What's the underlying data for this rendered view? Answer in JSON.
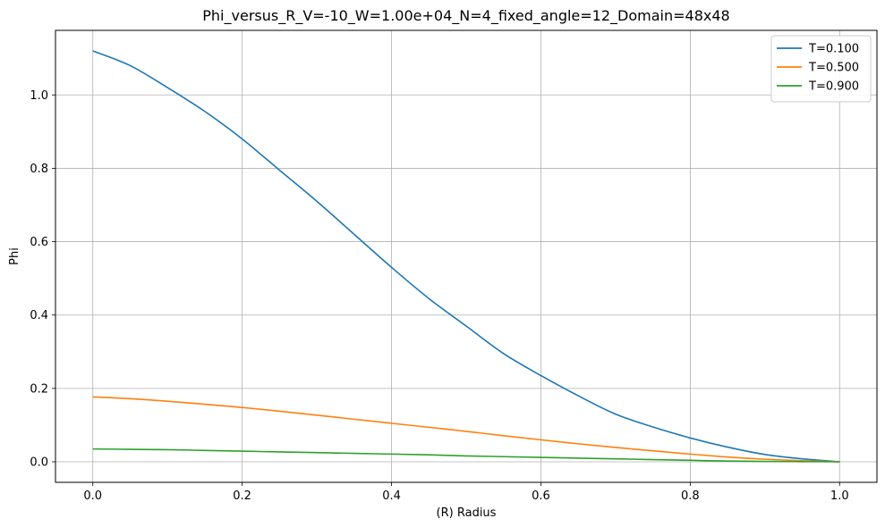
{
  "chart_data": {
    "type": "line",
    "title": "Phi_versus_R_V=-10_W=1.00e+04_N=4_fixed_angle=12_Domain=48x48",
    "xlabel": "(R) Radius",
    "ylabel": "Phi",
    "xlim": [
      -0.05,
      1.05
    ],
    "ylim": [
      -0.056,
      1.176
    ],
    "xticks": [
      0.0,
      0.2,
      0.4,
      0.6,
      0.8,
      1.0
    ],
    "xtick_labels": [
      "0.0",
      "0.2",
      "0.4",
      "0.6",
      "0.8",
      "1.0"
    ],
    "yticks": [
      0.0,
      0.2,
      0.4,
      0.6,
      0.8,
      1.0
    ],
    "ytick_labels": [
      "0.0",
      "0.2",
      "0.4",
      "0.6",
      "0.8",
      "1.0"
    ],
    "grid": true,
    "legend_position": "top-right",
    "series": [
      {
        "name": "T=0.100",
        "color": "#1f77b4",
        "x": [
          0.0,
          0.05,
          0.1,
          0.15,
          0.2,
          0.25,
          0.3,
          0.35,
          0.4,
          0.45,
          0.5,
          0.55,
          0.6,
          0.65,
          0.7,
          0.75,
          0.8,
          0.85,
          0.9,
          0.95,
          1.0
        ],
        "y": [
          1.12,
          1.08,
          1.02,
          0.955,
          0.88,
          0.795,
          0.71,
          0.62,
          0.53,
          0.445,
          0.37,
          0.295,
          0.235,
          0.18,
          0.13,
          0.095,
          0.065,
          0.04,
          0.02,
          0.008,
          0.0
        ]
      },
      {
        "name": "T=0.500",
        "color": "#ff7f0e",
        "x": [
          0.0,
          0.05,
          0.1,
          0.15,
          0.2,
          0.25,
          0.3,
          0.35,
          0.4,
          0.45,
          0.5,
          0.55,
          0.6,
          0.65,
          0.7,
          0.75,
          0.8,
          0.85,
          0.9,
          0.95,
          1.0
        ],
        "y": [
          0.177,
          0.172,
          0.165,
          0.157,
          0.148,
          0.138,
          0.127,
          0.116,
          0.105,
          0.094,
          0.083,
          0.071,
          0.06,
          0.049,
          0.039,
          0.03,
          0.021,
          0.013,
          0.007,
          0.003,
          0.0
        ]
      },
      {
        "name": "T=0.900",
        "color": "#2ca02c",
        "x": [
          0.0,
          0.05,
          0.1,
          0.15,
          0.2,
          0.25,
          0.3,
          0.35,
          0.4,
          0.45,
          0.5,
          0.55,
          0.6,
          0.65,
          0.7,
          0.75,
          0.8,
          0.85,
          0.9,
          0.95,
          1.0
        ],
        "y": [
          0.035,
          0.034,
          0.033,
          0.031,
          0.029,
          0.027,
          0.025,
          0.023,
          0.021,
          0.019,
          0.016,
          0.014,
          0.012,
          0.01,
          0.008,
          0.006,
          0.004,
          0.002,
          0.001,
          0.0005,
          0.0
        ]
      }
    ]
  }
}
